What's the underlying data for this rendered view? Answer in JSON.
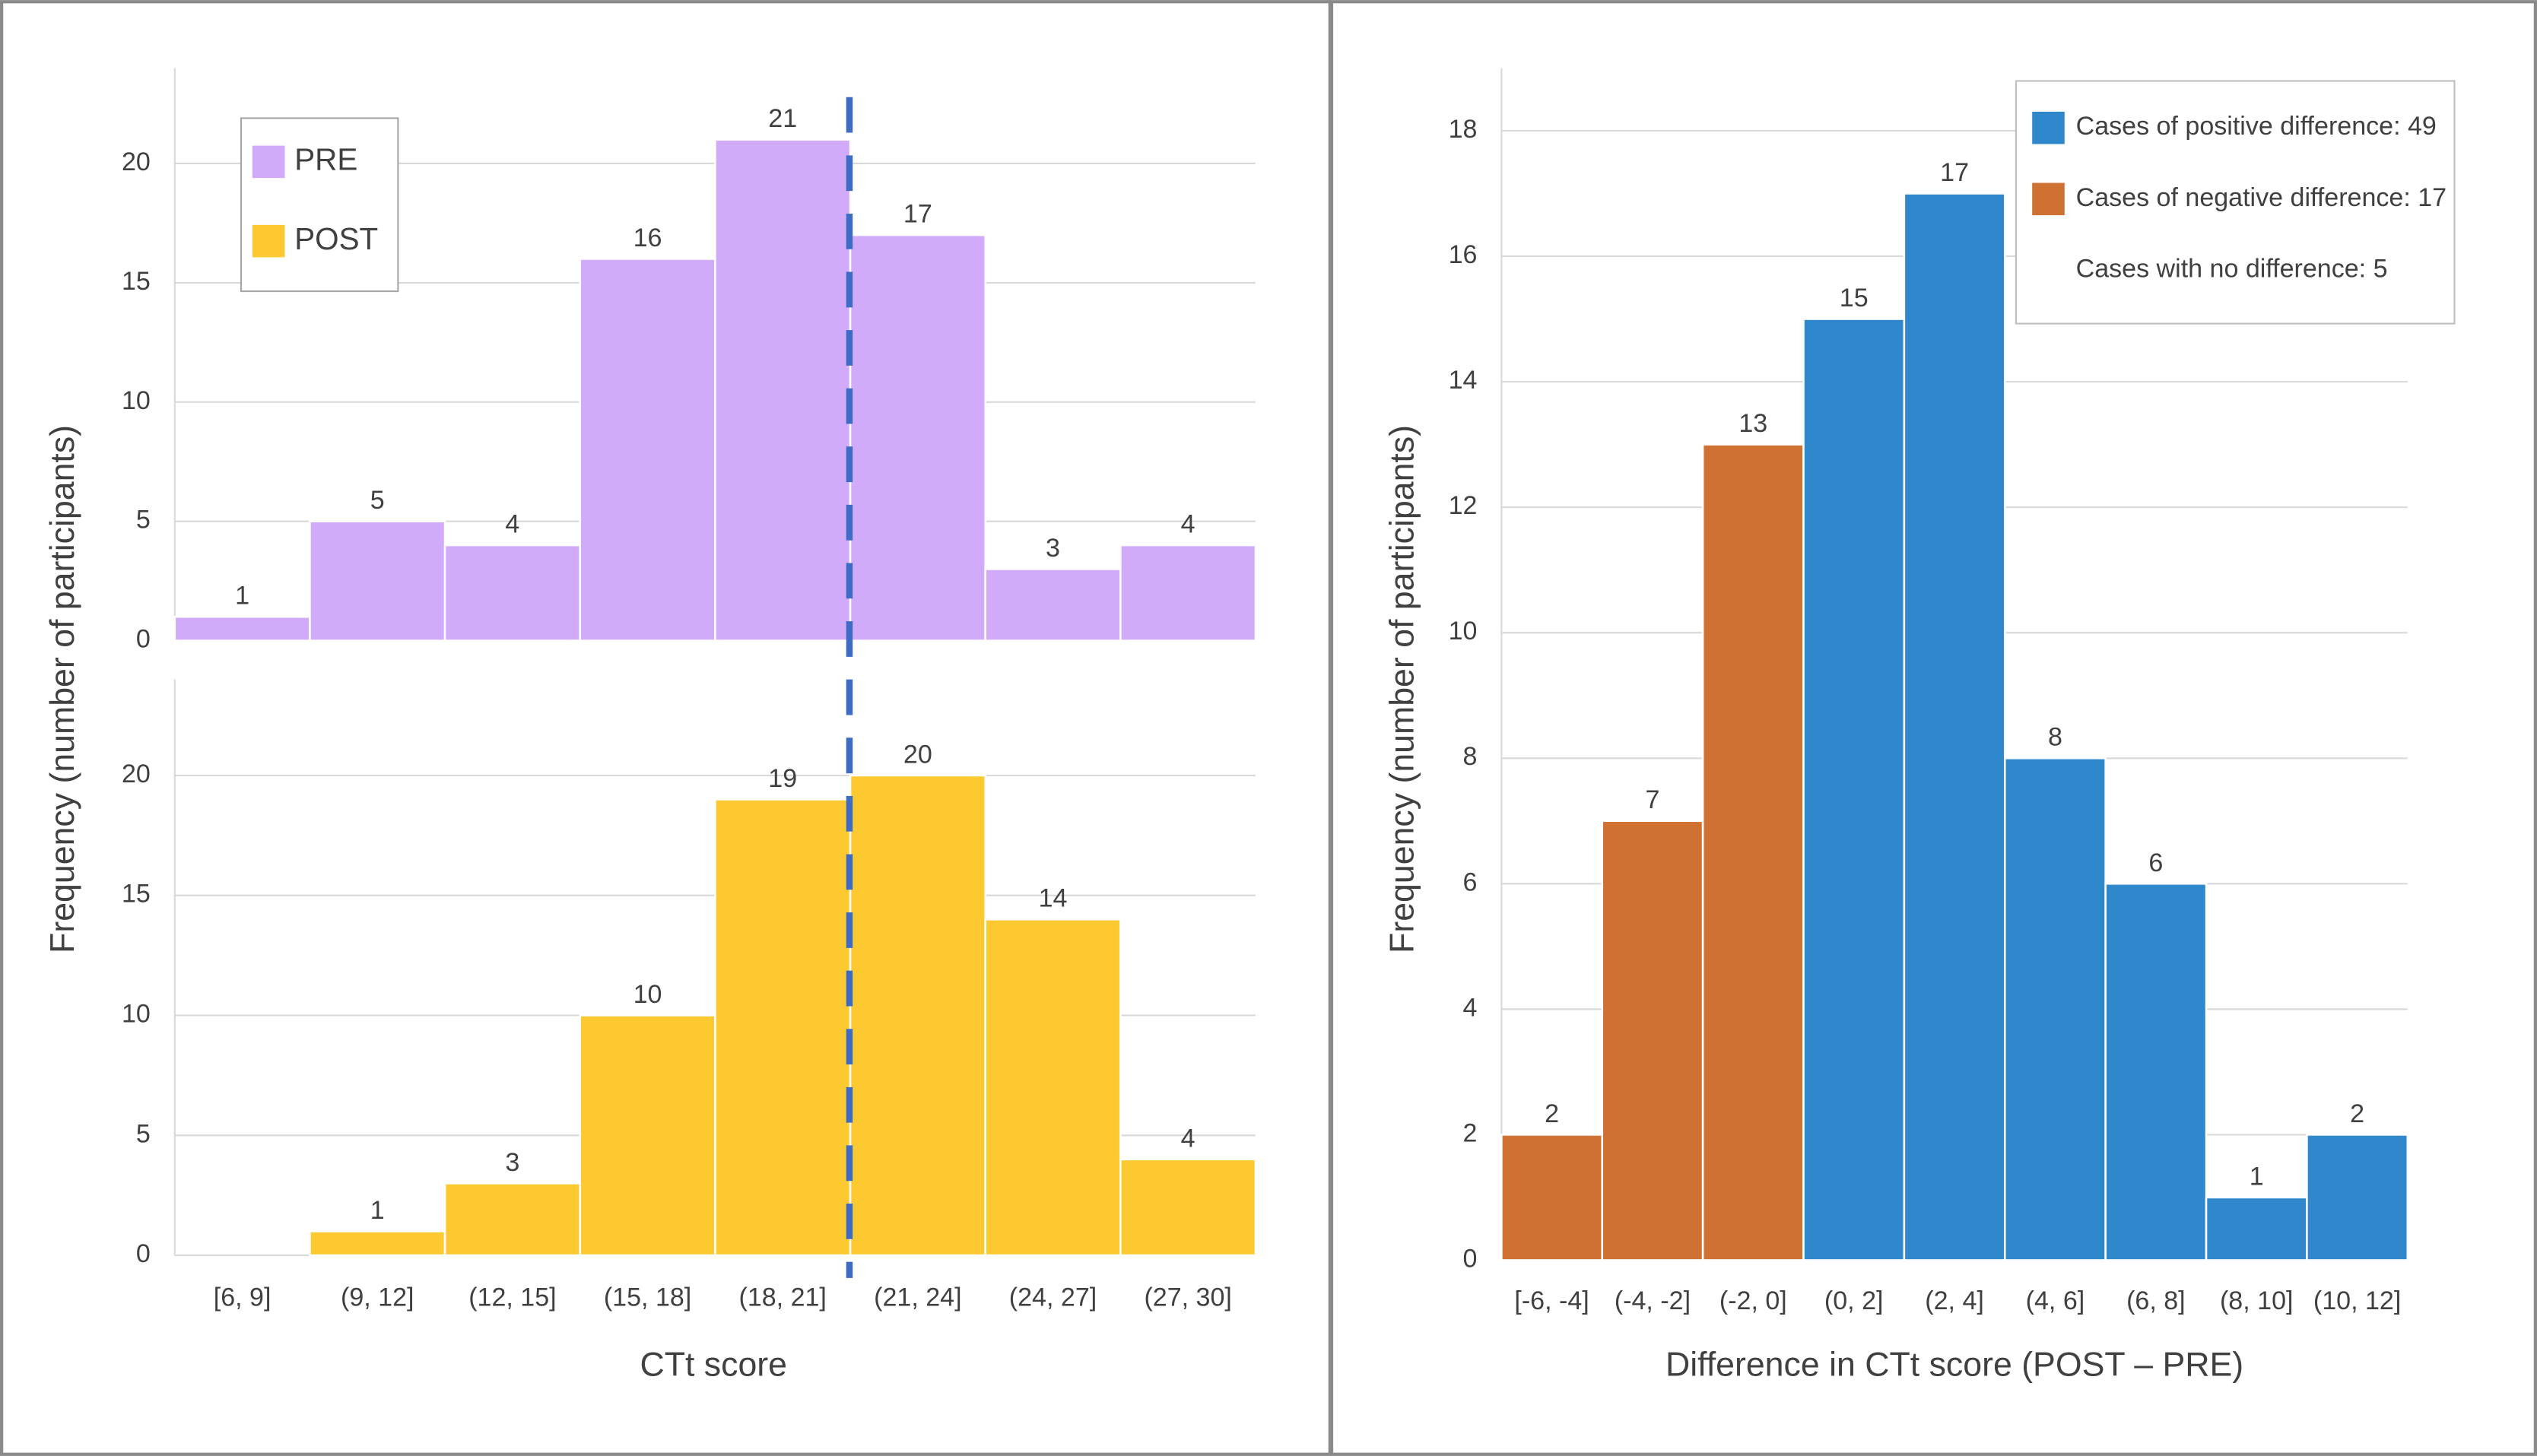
{
  "chart_data": [
    {
      "type": "bar",
      "ylabel": "Frequency  (number of participants)",
      "series": [
        {
          "name": "PRE",
          "color": "#d2aafa",
          "values": [
            1,
            5,
            4,
            16,
            21,
            17,
            3,
            4
          ]
        }
      ],
      "ylim": [
        0,
        24
      ],
      "yticks": [
        0,
        5,
        10,
        15,
        20
      ],
      "grid": true
    },
    {
      "type": "bar",
      "xlabel": "CTt score",
      "categories": [
        "[6, 9]",
        "(9, 12]",
        "(12, 15]",
        "(15, 18]",
        "(18, 21]",
        "(21, 24]",
        "(24, 27]",
        "(27, 30]"
      ],
      "series": [
        {
          "name": "POST",
          "color": "#fdc930",
          "values": [
            0,
            1,
            3,
            10,
            19,
            20,
            14,
            4
          ]
        }
      ],
      "ylim": [
        0,
        24
      ],
      "yticks": [
        0,
        5,
        10,
        15,
        20
      ],
      "grid": true
    },
    {
      "type": "bar",
      "xlabel": "Difference in CTt score (POST – PRE)",
      "ylabel": "Frequency  (number of participants)",
      "categories": [
        "[-6, -4]",
        "(-4, -2]",
        "(-2, 0]",
        "(0, 2]",
        "(2, 4]",
        "(4, 6]",
        "(6, 8]",
        "(8, 10]",
        "(10, 12]"
      ],
      "values": [
        2,
        7,
        13,
        15,
        17,
        8,
        6,
        1,
        2
      ],
      "colors": [
        "#cf7132",
        "#cf7132",
        "#cf7132",
        "#2f88cc",
        "#2f88cc",
        "#2f88cc",
        "#2f88cc",
        "#2f88cc",
        "#2f88cc"
      ],
      "legend": [
        {
          "label": "Cases of positive difference: 49",
          "color": "#2f88cc"
        },
        {
          "label": "Cases of negative difference: 17",
          "color": "#cf7132"
        },
        {
          "label": "Cases with no difference: 5"
        }
      ],
      "ylim": [
        0,
        19
      ],
      "yticks": [
        0,
        2,
        4,
        6,
        8,
        10,
        12,
        14,
        16,
        18
      ],
      "grid": true
    }
  ]
}
